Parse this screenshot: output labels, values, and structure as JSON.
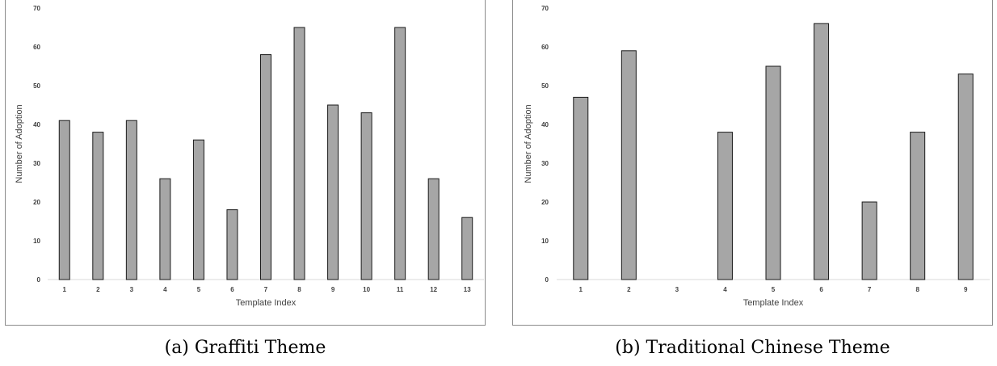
{
  "chart_data": [
    {
      "type": "bar",
      "caption": "(a) Graffiti Theme",
      "xlabel": "Template Index",
      "ylabel": "Number of Adoption",
      "ylim": [
        0,
        70
      ],
      "yticks": [
        "0",
        "10",
        "20",
        "30",
        "40",
        "50",
        "60",
        "70"
      ],
      "categories": [
        "1",
        "2",
        "3",
        "4",
        "5",
        "6",
        "7",
        "8",
        "9",
        "10",
        "11",
        "12",
        "13"
      ],
      "values": [
        41,
        38,
        41,
        26,
        36,
        18,
        58,
        65,
        45,
        43,
        65,
        26,
        16
      ],
      "grid": false,
      "bar_color": "#a6a6a6"
    },
    {
      "type": "bar",
      "caption": "(b) Traditional Chinese Theme",
      "xlabel": "Template Index",
      "ylabel": "Number of Adoption",
      "ylim": [
        0,
        70
      ],
      "yticks": [
        "0",
        "10",
        "20",
        "30",
        "40",
        "50",
        "60",
        "70"
      ],
      "categories": [
        "1",
        "2",
        "3",
        "4",
        "5",
        "6",
        "7",
        "8",
        "9"
      ],
      "values": [
        47,
        59,
        0,
        38,
        55,
        66,
        20,
        38,
        53
      ],
      "grid": false,
      "bar_color": "#a6a6a6"
    }
  ]
}
